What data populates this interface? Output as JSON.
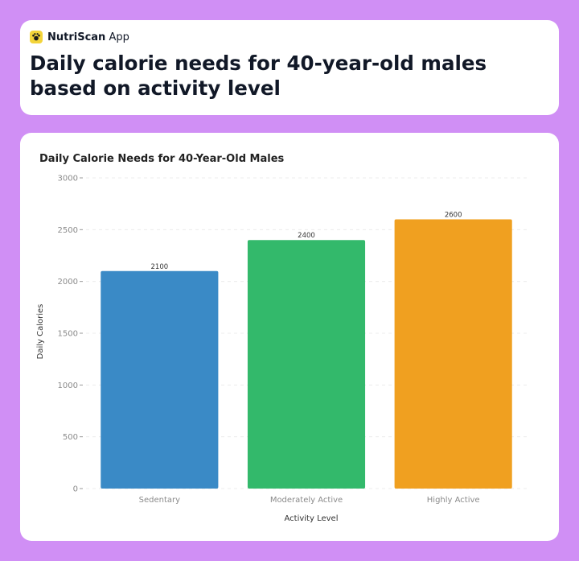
{
  "app": {
    "name_bold": "NutriScan",
    "name_rest": " App",
    "icon": "paw-icon",
    "icon_color": "#f3d43a"
  },
  "headline": "Daily calorie needs for 40-year-old males based on activity level",
  "colors": {
    "background": "#d08ff5",
    "card": "#ffffff"
  },
  "chart_data": {
    "type": "bar",
    "title": "Daily Calorie Needs for 40-Year-Old Males",
    "xlabel": "Activity Level",
    "ylabel": "Daily Calories",
    "categories": [
      "Sedentary",
      "Moderately Active",
      "Highly Active"
    ],
    "values": [
      2100,
      2400,
      2600
    ],
    "value_labels": [
      "2100",
      "2400",
      "2600"
    ],
    "colors": [
      "#3a8ac6",
      "#33b96b",
      "#f0a020"
    ],
    "ylim": [
      0,
      3000
    ],
    "yticks": [
      0,
      500,
      1000,
      1500,
      2000,
      2500,
      3000
    ],
    "ytick_labels": [
      "0",
      "500",
      "1000",
      "1500",
      "2000",
      "2500",
      "3000"
    ],
    "grid": true,
    "legend": false
  }
}
